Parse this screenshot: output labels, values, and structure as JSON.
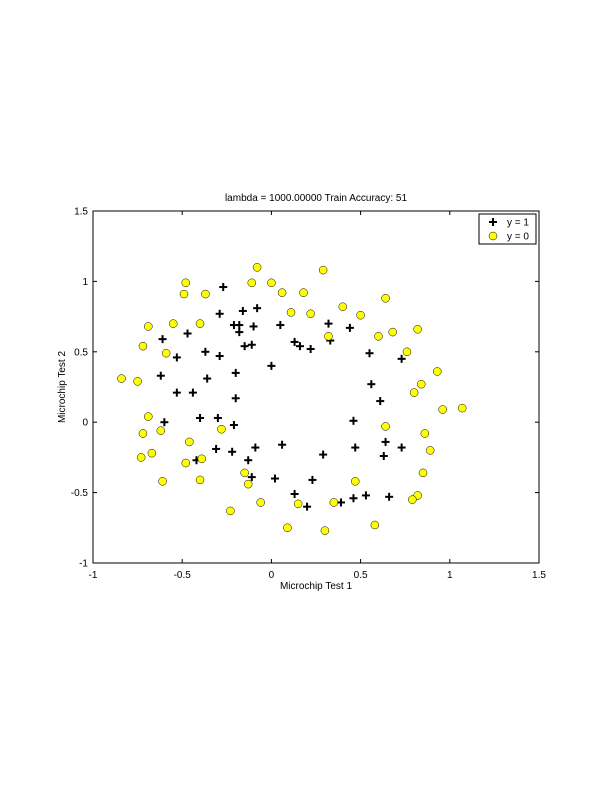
{
  "chart_data": {
    "type": "scatter",
    "title": "lambda = 1000.00000 Train Accuracy: 51",
    "xlabel": "Microchip Test 1",
    "ylabel": "Microchip Test 2",
    "xlim": [
      -1,
      1.5
    ],
    "ylim": [
      -1,
      1.5
    ],
    "xticks": [
      "-1",
      "-0.5",
      "0",
      "0.5",
      "1",
      "1.5"
    ],
    "yticks": [
      "-1",
      "-0.5",
      "0",
      "0.5",
      "1",
      "1.5"
    ],
    "grid": false,
    "legend_position": "top-right",
    "series": [
      {
        "name": "y = 1",
        "marker": "plus",
        "color": "#000000",
        "points": [
          [
            -0.27,
            0.96
          ],
          [
            -0.08,
            0.81
          ],
          [
            -0.16,
            0.79
          ],
          [
            -0.29,
            0.77
          ],
          [
            -0.21,
            0.69
          ],
          [
            -0.18,
            0.69
          ],
          [
            -0.18,
            0.64
          ],
          [
            -0.1,
            0.68
          ],
          [
            0.05,
            0.69
          ],
          [
            0.13,
            0.57
          ],
          [
            0.16,
            0.54
          ],
          [
            0.22,
            0.52
          ],
          [
            0.32,
            0.7
          ],
          [
            0.33,
            0.58
          ],
          [
            0.44,
            0.67
          ],
          [
            0.55,
            0.49
          ],
          [
            0.73,
            0.45
          ],
          [
            -0.15,
            0.54
          ],
          [
            -0.11,
            0.55
          ],
          [
            -0.61,
            0.59
          ],
          [
            -0.47,
            0.63
          ],
          [
            -0.53,
            0.46
          ],
          [
            -0.37,
            0.5
          ],
          [
            -0.29,
            0.47
          ],
          [
            -0.2,
            0.35
          ],
          [
            -0.62,
            0.33
          ],
          [
            -0.36,
            0.31
          ],
          [
            -0.53,
            0.21
          ],
          [
            -0.44,
            0.21
          ],
          [
            -0.2,
            0.17
          ],
          [
            -0.0,
            0.4
          ],
          [
            0.56,
            0.27
          ],
          [
            0.61,
            0.15
          ],
          [
            -0.6,
            0.0
          ],
          [
            -0.4,
            0.03
          ],
          [
            -0.3,
            0.03
          ],
          [
            -0.21,
            -0.02
          ],
          [
            0.46,
            0.01
          ],
          [
            -0.42,
            -0.27
          ],
          [
            -0.31,
            -0.19
          ],
          [
            -0.22,
            -0.21
          ],
          [
            -0.09,
            -0.18
          ],
          [
            0.06,
            -0.16
          ],
          [
            0.47,
            -0.18
          ],
          [
            0.64,
            -0.14
          ],
          [
            0.73,
            -0.18
          ],
          [
            0.63,
            -0.24
          ],
          [
            0.29,
            -0.23
          ],
          [
            -0.13,
            -0.27
          ],
          [
            -0.11,
            -0.39
          ],
          [
            0.02,
            -0.4
          ],
          [
            0.23,
            -0.41
          ],
          [
            0.13,
            -0.51
          ],
          [
            0.2,
            -0.6
          ],
          [
            0.39,
            -0.57
          ],
          [
            0.46,
            -0.54
          ],
          [
            0.53,
            -0.52
          ],
          [
            0.66,
            -0.53
          ]
        ]
      },
      {
        "name": "y = 0",
        "marker": "circle",
        "color": "#ffff00",
        "points": [
          [
            -0.08,
            1.1
          ],
          [
            -0.48,
            0.99
          ],
          [
            -0.11,
            0.99
          ],
          [
            0.0,
            0.99
          ],
          [
            -0.49,
            0.91
          ],
          [
            -0.37,
            0.91
          ],
          [
            0.06,
            0.92
          ],
          [
            0.29,
            1.08
          ],
          [
            0.18,
            0.92
          ],
          [
            0.11,
            0.78
          ],
          [
            0.22,
            0.77
          ],
          [
            0.4,
            0.82
          ],
          [
            0.5,
            0.76
          ],
          [
            0.64,
            0.88
          ],
          [
            0.6,
            0.61
          ],
          [
            0.68,
            0.64
          ],
          [
            0.76,
            0.5
          ],
          [
            0.82,
            0.66
          ],
          [
            0.84,
            0.27
          ],
          [
            0.93,
            0.36
          ],
          [
            0.8,
            0.21
          ],
          [
            0.96,
            0.09
          ],
          [
            1.07,
            0.1
          ],
          [
            0.86,
            -0.08
          ],
          [
            0.89,
            -0.2
          ],
          [
            0.64,
            -0.03
          ],
          [
            0.85,
            -0.36
          ],
          [
            0.82,
            -0.52
          ],
          [
            0.79,
            -0.55
          ],
          [
            0.58,
            -0.73
          ],
          [
            0.47,
            -0.42
          ],
          [
            0.35,
            -0.57
          ],
          [
            0.3,
            -0.77
          ],
          [
            0.09,
            -0.75
          ],
          [
            0.15,
            -0.58
          ],
          [
            -0.06,
            -0.57
          ],
          [
            -0.15,
            -0.36
          ],
          [
            -0.13,
            -0.44
          ],
          [
            -0.23,
            -0.63
          ],
          [
            -0.4,
            -0.41
          ],
          [
            -0.48,
            -0.29
          ],
          [
            -0.46,
            -0.14
          ],
          [
            -0.39,
            -0.26
          ],
          [
            -0.28,
            -0.05
          ],
          [
            -0.61,
            -0.42
          ],
          [
            -0.67,
            -0.22
          ],
          [
            -0.73,
            -0.25
          ],
          [
            -0.62,
            -0.06
          ],
          [
            -0.72,
            -0.08
          ],
          [
            -0.69,
            0.04
          ],
          [
            -0.84,
            0.31
          ],
          [
            -0.75,
            0.29
          ],
          [
            -0.59,
            0.49
          ],
          [
            -0.72,
            0.54
          ],
          [
            -0.69,
            0.68
          ],
          [
            -0.55,
            0.7
          ],
          [
            -0.4,
            0.7
          ],
          [
            0.32,
            0.61
          ]
        ]
      }
    ]
  }
}
